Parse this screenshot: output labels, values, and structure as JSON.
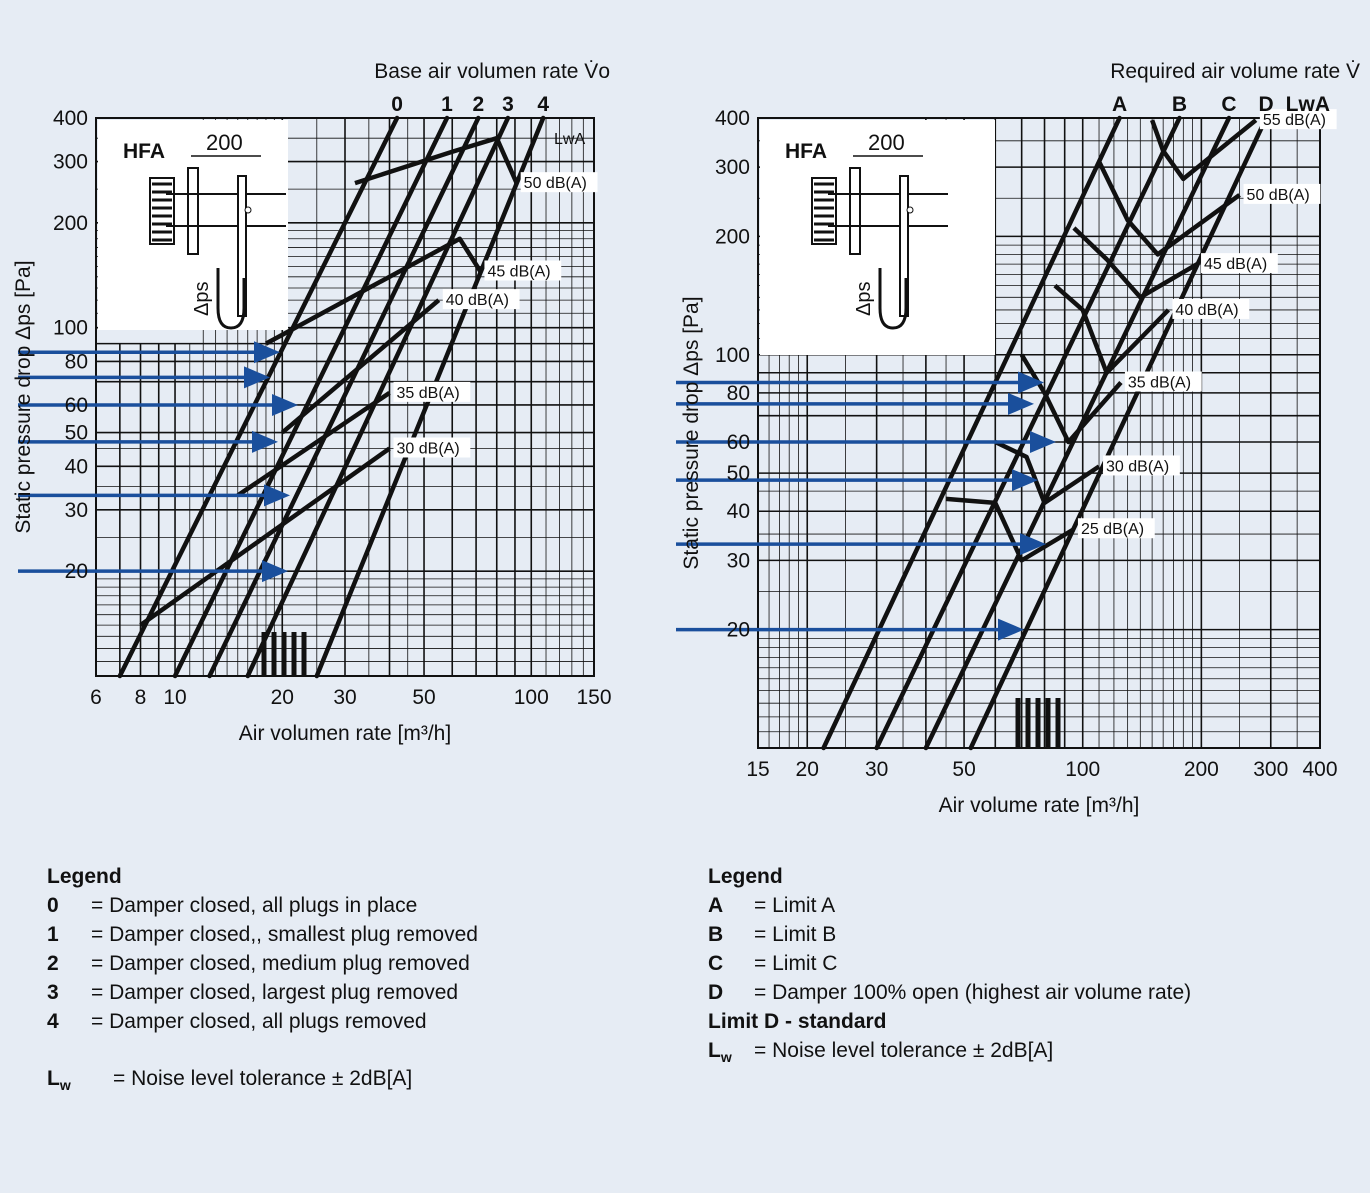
{
  "chart_data": [
    {
      "type": "line",
      "title": "Base air volumen rate V̇o",
      "xlabel": "Air volumen rate [m³/h]",
      "ylabel": "Static pressure drop Δps [Pa]",
      "x_scale": "log",
      "y_scale": "log",
      "xlim": [
        6,
        150
      ],
      "ylim": [
        10,
        400
      ],
      "x_ticks": [
        "6",
        "8",
        "10",
        "20",
        "30",
        "50",
        "100",
        "150"
      ],
      "y_ticks": [
        "20",
        "30",
        "40",
        "50",
        "60",
        "80",
        "100",
        "200",
        "300",
        "400"
      ],
      "grid": true,
      "curve_ids": [
        "0",
        "1",
        "2",
        "3",
        "4"
      ],
      "lwa_label": "LwA",
      "series": [
        {
          "name": "0",
          "x": [
            7,
            42
          ],
          "y": [
            10,
            400
          ]
        },
        {
          "name": "1",
          "x": [
            10,
            58
          ],
          "y": [
            10,
            400
          ]
        },
        {
          "name": "2",
          "x": [
            12.5,
            71
          ],
          "y": [
            10,
            400
          ]
        },
        {
          "name": "3",
          "x": [
            16,
            86
          ],
          "y": [
            10,
            400
          ]
        },
        {
          "name": "4",
          "x": [
            25,
            108
          ],
          "y": [
            10,
            400
          ]
        }
      ],
      "noise_lines": [
        {
          "label": "50 dB(A)",
          "x": [
            32,
            60,
            80,
            91
          ],
          "y": [
            260,
            320,
            350,
            260
          ]
        },
        {
          "label": "45 dB(A)",
          "x": [
            18,
            63,
            72
          ],
          "y": [
            90,
            180,
            145
          ]
        },
        {
          "label": "40 dB(A)",
          "x": [
            20,
            55
          ],
          "y": [
            50,
            120
          ]
        },
        {
          "label": "35 dB(A)",
          "x": [
            15,
            40
          ],
          "y": [
            33,
            65
          ]
        },
        {
          "label": "30 dB(A)",
          "x": [
            8,
            40
          ],
          "y": [
            14,
            45
          ]
        }
      ],
      "arrows_y": [
        85,
        72,
        60,
        47,
        33,
        20
      ],
      "inset": {
        "label": "HFA",
        "dimension": "200",
        "gauge": "Δps"
      }
    },
    {
      "type": "line",
      "title": "Required air volume rate V̇",
      "xlabel": "Air volume rate [m³/h]",
      "ylabel": "Static pressure drop Δps [Pa]",
      "x_scale": "log",
      "y_scale": "log",
      "xlim": [
        15,
        400
      ],
      "ylim": [
        10,
        400
      ],
      "x_ticks": [
        "15",
        "20",
        "30",
        "50",
        "100",
        "200",
        "300",
        "400"
      ],
      "y_ticks": [
        "20",
        "30",
        "40",
        "50",
        "60",
        "80",
        "100",
        "200",
        "300",
        "400"
      ],
      "grid": true,
      "curve_ids": [
        "A",
        "B",
        "C",
        "D"
      ],
      "lwa_label": "LwA",
      "series": [
        {
          "name": "A",
          "x": [
            22,
            124
          ],
          "y": [
            10,
            400
          ]
        },
        {
          "name": "B",
          "x": [
            30,
            176
          ],
          "y": [
            10,
            400
          ]
        },
        {
          "name": "C",
          "x": [
            40,
            235
          ],
          "y": [
            10,
            400
          ]
        },
        {
          "name": "D",
          "x": [
            52,
            292
          ],
          "y": [
            10,
            400
          ]
        }
      ],
      "noise_lines": [
        {
          "label": "55 dB(A)",
          "x": [
            150,
            160,
            180,
            275
          ],
          "y": [
            395,
            330,
            280,
            395
          ]
        },
        {
          "label": "50 dB(A)",
          "x": [
            110,
            130,
            155,
            250
          ],
          "y": [
            310,
            220,
            180,
            255
          ]
        },
        {
          "label": "45 dB(A)",
          "x": [
            95,
            115,
            140,
            195
          ],
          "y": [
            210,
            175,
            140,
            170
          ]
        },
        {
          "label": "40 dB(A)",
          "x": [
            85,
            100,
            115,
            165
          ],
          "y": [
            150,
            130,
            90,
            130
          ]
        },
        {
          "label": "35 dB(A)",
          "x": [
            70,
            80,
            92,
            125
          ],
          "y": [
            100,
            80,
            60,
            85
          ]
        },
        {
          "label": "30 dB(A)",
          "x": [
            60,
            72,
            80,
            110
          ],
          "y": [
            60,
            55,
            42,
            52
          ]
        },
        {
          "label": "25 dB(A)",
          "x": [
            45,
            60,
            70,
            95
          ],
          "y": [
            43,
            42,
            30,
            36
          ]
        }
      ],
      "arrows_y": [
        85,
        75,
        60,
        48,
        33,
        20
      ],
      "inset": {
        "label": "HFA",
        "dimension": "200",
        "gauge": "Δps"
      }
    }
  ],
  "legend_left": {
    "title": "Legend",
    "items": [
      {
        "key": "0",
        "text": "= Damper closed, all plugs in place"
      },
      {
        "key": "1",
        "text": "= Damper closed,, smallest plug removed"
      },
      {
        "key": "2",
        "text": "= Damper closed, medium plug removed"
      },
      {
        "key": "3",
        "text": "= Damper closed, largest plug removed"
      },
      {
        "key": "4",
        "text": "= Damper closed, all plugs removed"
      }
    ],
    "lw_key": "L",
    "lw_sub": "w",
    "lw_text": "=  Noise level tolerance ± 2dB[A]"
  },
  "legend_right": {
    "title": "Legend",
    "items": [
      {
        "key": "A",
        "text": "= Limit A"
      },
      {
        "key": "B",
        "text": "= Limit B"
      },
      {
        "key": "C",
        "text": "= Limit C"
      },
      {
        "key": "D",
        "text": "= Damper 100% open (highest air volume rate)"
      }
    ],
    "note": "Limit D - standard",
    "lw_key": "L",
    "lw_sub": "w",
    "lw_text": "=  Noise level tolerance ± 2dB[A]"
  },
  "colors": {
    "background": "#e6ecf4",
    "curve": "#111111",
    "arrow": "#1a4f9c",
    "grid": "#111111"
  }
}
